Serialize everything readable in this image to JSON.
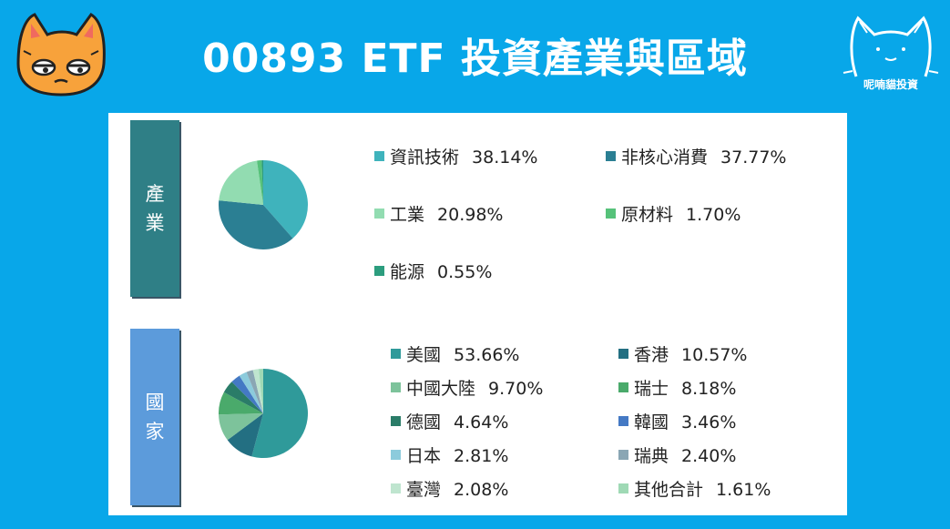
{
  "header": {
    "title": "00893 ETF 投資產業與區域",
    "brand_text": "呢喃貓投資"
  },
  "sections": {
    "industry": {
      "label_chars": [
        "產",
        "業"
      ]
    },
    "country": {
      "label_chars": [
        "國",
        "家"
      ]
    }
  },
  "chart_data": [
    {
      "type": "pie",
      "slices": [
        {
          "label": "資訊技術",
          "value": 38.14,
          "display": "38.14%",
          "color": "#3fb3bc"
        },
        {
          "label": "非核心消費",
          "value": 37.77,
          "display": "37.77%",
          "color": "#2b7f93"
        },
        {
          "label": "工業",
          "value": 20.98,
          "display": "20.98%",
          "color": "#92dcb1"
        },
        {
          "label": "原材料",
          "value": 1.7,
          "display": "1.70%",
          "color": "#56c27a"
        },
        {
          "label": "能源",
          "value": 0.55,
          "display": "0.55%",
          "color": "#2c9d7e"
        }
      ]
    },
    {
      "type": "pie",
      "slices": [
        {
          "label": "美國",
          "value": 53.66,
          "display": "53.66%",
          "color": "#2f9a9a"
        },
        {
          "label": "香港",
          "value": 10.57,
          "display": "10.57%",
          "color": "#236f82"
        },
        {
          "label": "中國大陸",
          "value": 9.7,
          "display": "9.70%",
          "color": "#7dc39b"
        },
        {
          "label": "瑞士",
          "value": 8.18,
          "display": "8.18%",
          "color": "#4aaa6b"
        },
        {
          "label": "德國",
          "value": 4.64,
          "display": "4.64%",
          "color": "#2a7c68"
        },
        {
          "label": "韓國",
          "value": 3.46,
          "display": "3.46%",
          "color": "#4479c4"
        },
        {
          "label": "日本",
          "value": 2.81,
          "display": "2.81%",
          "color": "#8ccbdc"
        },
        {
          "label": "瑞典",
          "value": 2.4,
          "display": "2.40%",
          "color": "#8aa6b4"
        },
        {
          "label": "臺灣",
          "value": 2.08,
          "display": "2.08%",
          "color": "#bfe5cf"
        },
        {
          "label": "其他合計",
          "value": 1.61,
          "display": "1.61%",
          "color": "#9fd9b5"
        }
      ]
    }
  ]
}
